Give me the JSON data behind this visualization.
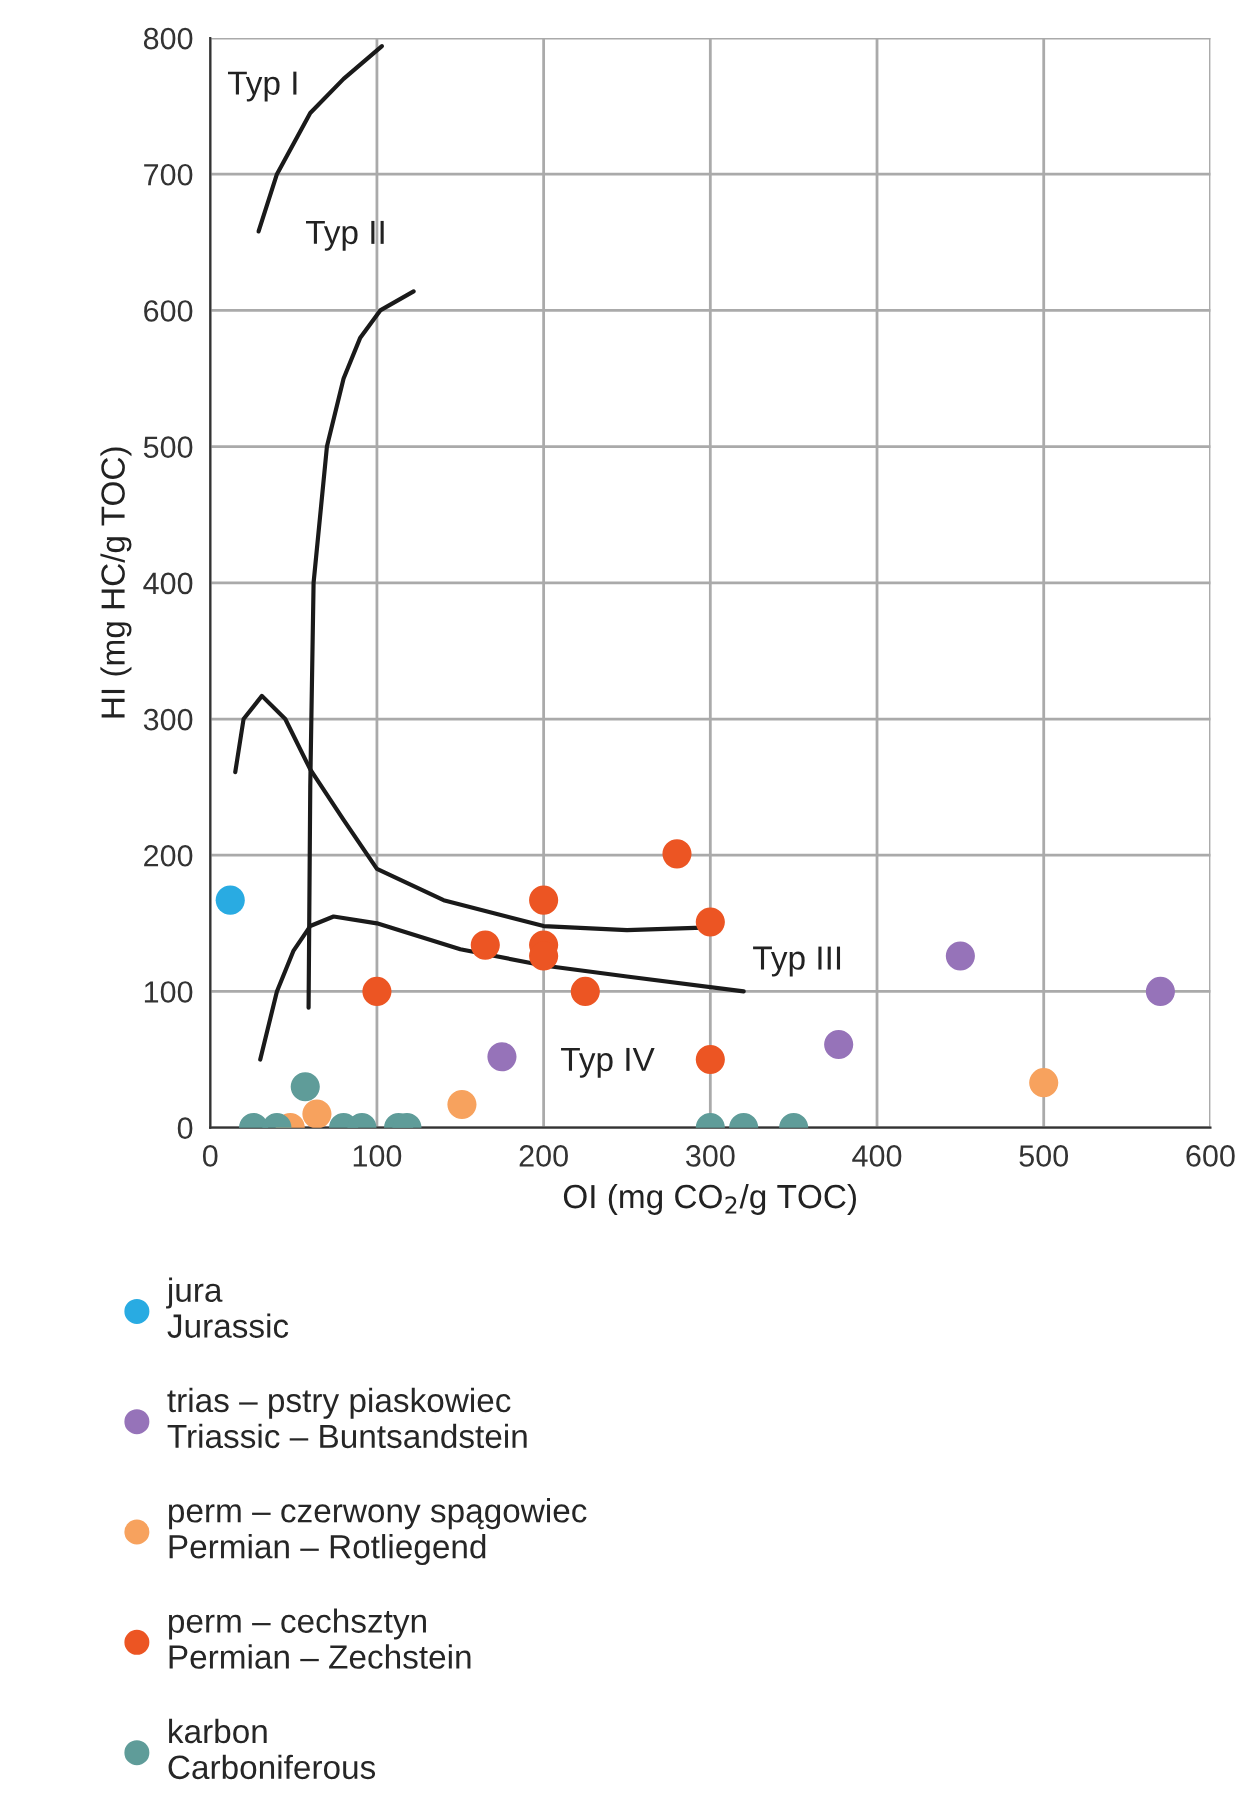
{
  "chart_data": {
    "type": "scatter",
    "xlabel": "OI (mg CO$_{2}$/g TOC)",
    "ylabel": "HI (mg HC/g TOC)",
    "xlim": [
      0,
      600
    ],
    "xticks": [
      0,
      100,
      200,
      300,
      400,
      500,
      600
    ],
    "ylim": [
      0,
      800
    ],
    "yticks": [
      0,
      100,
      200,
      300,
      400,
      500,
      600,
      700,
      800
    ],
    "grid": true,
    "legend": "bottom",
    "marker": "circle",
    "series": [
      {
        "name": "jura\nJurassic",
        "color": "#29abe2",
        "x": [
          12
        ],
        "values": [
          167
        ]
      },
      {
        "name": "trias – pstry piaskowiec\nTriassic – Buntsandstein",
        "color": "#9673b9",
        "x": [
          175,
          377,
          450,
          570
        ],
        "values": [
          52,
          61,
          126,
          100
        ]
      },
      {
        "name": "perm – czerwony spągowiec\nPermian – Rotliegend",
        "color": "#f7a25e",
        "x": [
          48,
          64,
          151,
          500
        ],
        "values": [
          0,
          10,
          17,
          33
        ]
      },
      {
        "name": "perm – cechsztyn\nPermian – Zechstein",
        "color": "#ec5523",
        "x": [
          100,
          165,
          200,
          200,
          200,
          225,
          280,
          300,
          300
        ],
        "values": [
          100,
          134,
          167,
          134,
          126,
          100,
          201,
          151,
          50
        ]
      },
      {
        "name": "karbon\nCarboniferous",
        "color": "#5f9c99",
        "x": [
          26,
          40,
          80,
          91,
          113,
          118,
          300,
          320,
          350,
          57
        ],
        "values": [
          0,
          0,
          0,
          0,
          0,
          0,
          0,
          0,
          0,
          30
        ]
      },
      {
        "type": "line",
        "marker": "none",
        "color": "#1a1a1a",
        "x": [
          29,
          40,
          60,
          80,
          103
        ],
        "values": [
          658,
          700,
          745,
          770,
          794
        ]
      },
      {
        "type": "line",
        "marker": "none",
        "color": "#1a1a1a",
        "x": [
          59,
          60,
          62,
          70,
          80,
          90,
          102,
          122
        ],
        "values": [
          88,
          250,
          400,
          500,
          550,
          580,
          600,
          614
        ]
      },
      {
        "type": "line",
        "marker": "none",
        "color": "#1a1a1a",
        "x": [
          15,
          20,
          31,
          45,
          60,
          80,
          100,
          140,
          200,
          250,
          300
        ],
        "values": [
          261,
          300,
          317,
          300,
          263,
          226,
          190,
          167,
          148,
          145,
          147
        ]
      },
      {
        "type": "line",
        "marker": "none",
        "color": "#1a1a1a",
        "x": [
          30,
          40,
          50,
          60,
          74,
          100,
          150,
          200,
          250,
          320
        ],
        "values": [
          50,
          100,
          130,
          148,
          155,
          150,
          131,
          119,
          111,
          100
        ]
      }
    ],
    "annotations": [
      "Typ I",
      "Typ II",
      "Typ III",
      "Typ IV"
    ]
  }
}
